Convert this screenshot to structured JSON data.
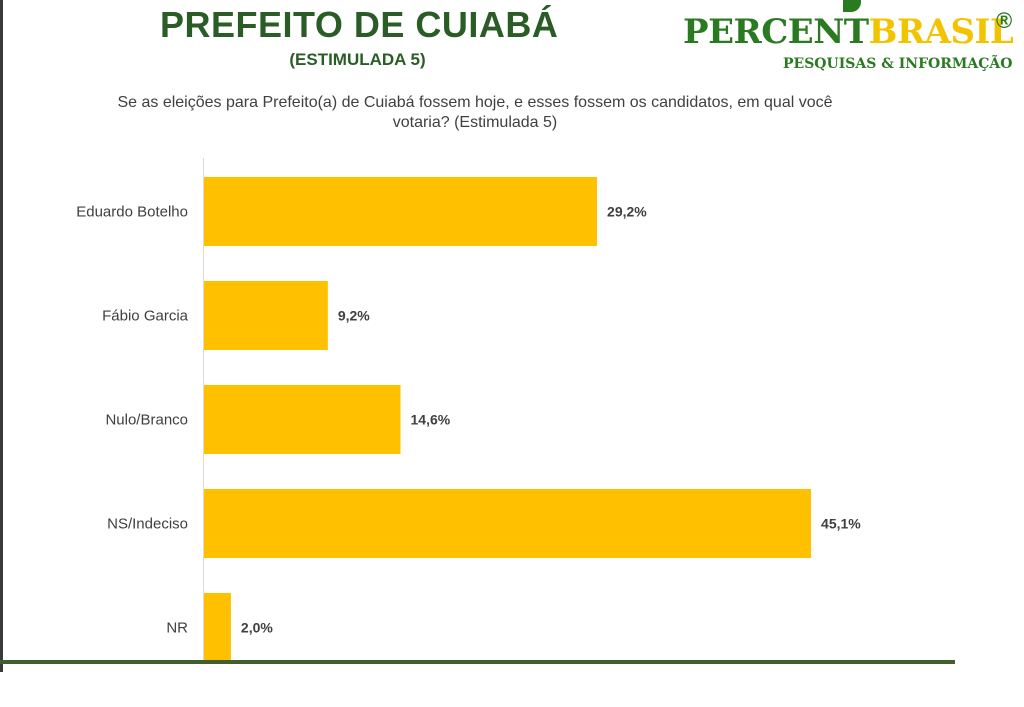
{
  "header": {
    "title": "PREFEITO DE CUIABÁ",
    "subtitle": "(ESTIMULADA 5)",
    "question": "Se as eleições para Prefeito(a) de Cuiabá fossem hoje, e esses fossem os candidatos, em qual você votaria? (Estimulada 5)"
  },
  "logo": {
    "part1": "PERCENT",
    "part2": "BRASIL",
    "registered": "®",
    "tagline": "PESQUISAS & INFORMAÇÃO",
    "colors": {
      "green": "#2a7a22",
      "yellow": "#f2c400"
    }
  },
  "chart_data": {
    "type": "bar",
    "orientation": "horizontal",
    "categories": [
      "Eduardo Botelho",
      "Fábio Garcia",
      "Nulo/Branco",
      "NS/Indeciso",
      "NR"
    ],
    "values": [
      29.2,
      9.2,
      14.6,
      45.1,
      2.0
    ],
    "data_labels": [
      "29,2%",
      "9,2%",
      "14,6%",
      "45,1%",
      "2,0%"
    ],
    "unit": "%",
    "xlim": [
      0,
      45.1
    ],
    "bar_color": "#ffc000",
    "grid": false,
    "legend": "none"
  }
}
